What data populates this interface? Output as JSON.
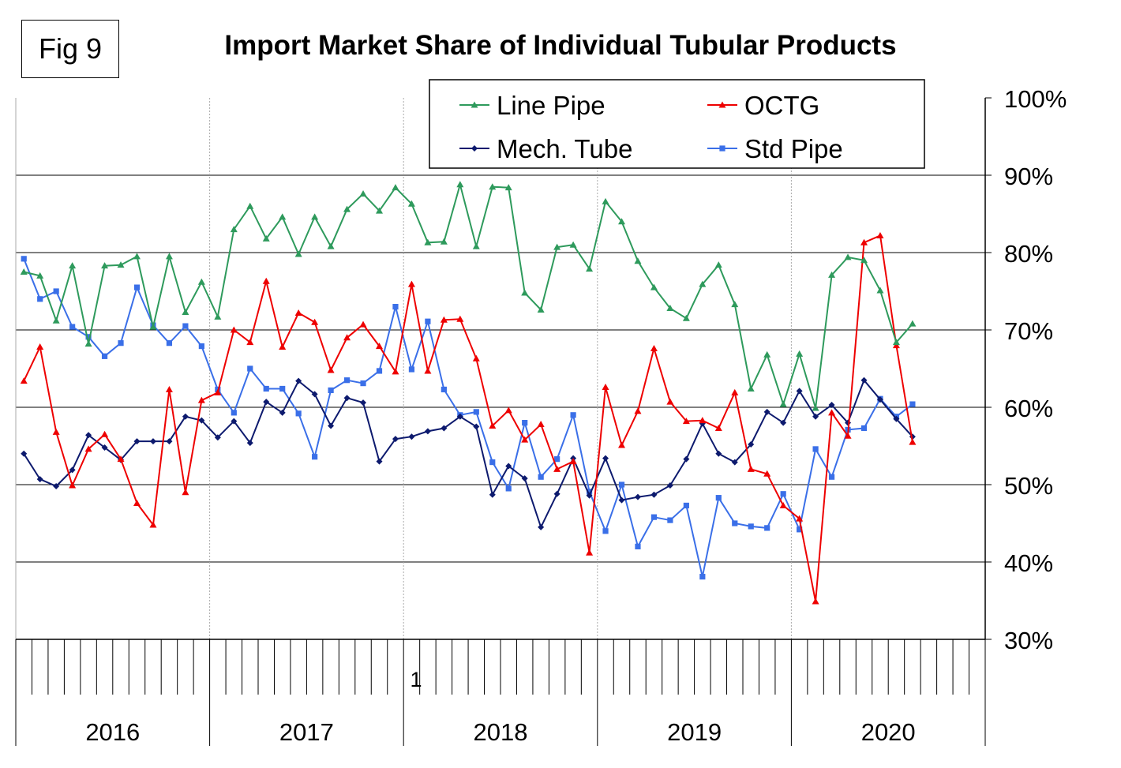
{
  "figure_label": "Fig 9",
  "chart_data": {
    "type": "line",
    "title": "Import Market Share of Individual Tubular Products",
    "xlabel": "",
    "ylabel": "",
    "ylim": [
      30,
      100
    ],
    "y_ticks": [
      "100%",
      "90%",
      "80%",
      "70%",
      "60%",
      "50%",
      "40%",
      "30%"
    ],
    "y_tick_values": [
      100,
      90,
      80,
      70,
      60,
      50,
      40,
      30
    ],
    "year_labels": [
      "2016",
      "2017",
      "2018",
      "2019",
      "2020"
    ],
    "months_per_year": 12,
    "stray_label": "1",
    "grid": true,
    "legend_position": "top-right",
    "series": [
      {
        "name": "Line Pipe",
        "color": "#2e9a5c",
        "marker": "triangle",
        "values": [
          77.5,
          77,
          71.2,
          78.3,
          68.2,
          78.3,
          78.4,
          79.5,
          70.4,
          79.5,
          72.3,
          76.2,
          71.7,
          83,
          86,
          81.8,
          84.6,
          79.8,
          84.6,
          80.8,
          85.6,
          87.6,
          85.4,
          88.4,
          86.3,
          81.3,
          81.4,
          88.8,
          80.8,
          88.5,
          88.4,
          74.8,
          72.6,
          80.7,
          81,
          77.9,
          86.6,
          84,
          78.9,
          75.5,
          72.8,
          71.5,
          75.9,
          78.4,
          73.3,
          62.4,
          66.8,
          60.4,
          66.9,
          59.9,
          77.1,
          79.4,
          79,
          75.1,
          68.4,
          70.8
        ]
      },
      {
        "name": "OCTG",
        "color": "#ee0000",
        "marker": "triangle",
        "values": [
          63.4,
          67.8,
          56.8,
          49.9,
          54.6,
          56.5,
          53.3,
          47.6,
          44.8,
          62.3,
          49,
          60.9,
          61.9,
          70,
          68.4,
          76.3,
          67.8,
          72.2,
          71,
          64.8,
          69,
          70.7,
          67.9,
          64.6,
          75.9,
          64.7,
          71.3,
          71.4,
          66.3,
          57.6,
          59.6,
          55.8,
          57.8,
          52,
          53,
          41.2,
          62.6,
          55.1,
          59.5,
          67.6,
          60.7,
          58.2,
          58.3,
          57.3,
          61.9,
          52,
          51.4,
          47.3,
          45.6,
          34.9,
          59.3,
          56.3,
          81.3,
          82.2,
          68,
          55.5
        ]
      },
      {
        "name": "Mech. Tube",
        "color": "#0d1a6e",
        "marker": "diamond",
        "values": [
          54,
          50.7,
          49.8,
          51.9,
          56.4,
          54.8,
          53.2,
          55.6,
          55.6,
          55.6,
          58.8,
          58.3,
          56.1,
          58.2,
          55.4,
          60.7,
          59.3,
          63.4,
          61.7,
          57.6,
          61.2,
          60.6,
          53,
          55.9,
          56.2,
          56.9,
          57.3,
          58.8,
          57.5,
          48.7,
          52.4,
          50.8,
          44.5,
          48.8,
          53.4,
          48.6,
          53.4,
          48,
          48.4,
          48.7,
          49.9,
          53.3,
          57.9,
          54,
          52.9,
          55.2,
          59.4,
          58,
          62.1,
          58.8,
          60.3,
          58,
          63.5,
          61,
          58.5,
          56.2
        ]
      },
      {
        "name": "Std Pipe",
        "color": "#3a6fe8",
        "marker": "square",
        "values": [
          79.2,
          74,
          75,
          70.4,
          69.1,
          66.6,
          68.3,
          75.5,
          70.6,
          68.3,
          70.5,
          67.9,
          62.3,
          59.3,
          65,
          62.4,
          62.4,
          59.2,
          53.6,
          62.2,
          63.5,
          63.1,
          64.7,
          73,
          64.9,
          71.1,
          62.3,
          59,
          59.4,
          52.9,
          49.5,
          58,
          51,
          53.3,
          59,
          49.1,
          44,
          50,
          42,
          45.8,
          45.4,
          47.3,
          38.1,
          48.3,
          45,
          44.6,
          44.4,
          48.8,
          44.2,
          54.6,
          51,
          57.1,
          57.3,
          61.1,
          58.8,
          60.4
        ]
      }
    ]
  }
}
